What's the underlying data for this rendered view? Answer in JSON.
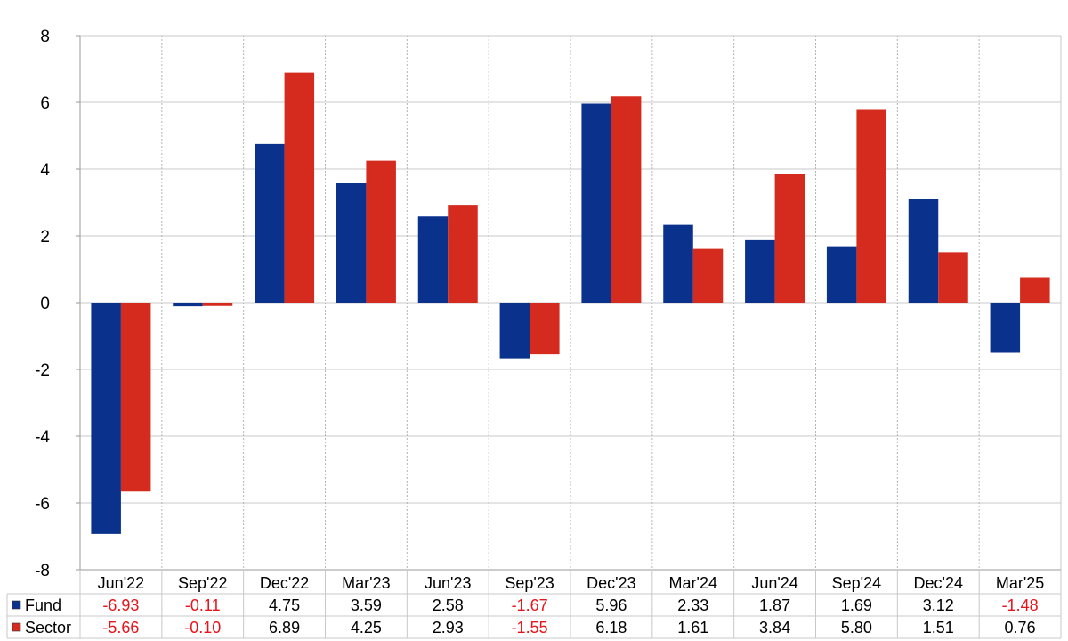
{
  "chart_data": {
    "type": "bar",
    "categories": [
      "Jun'22",
      "Sep'22",
      "Dec'22",
      "Mar'23",
      "Jun'23",
      "Sep'23",
      "Dec'23",
      "Mar'24",
      "Jun'24",
      "Sep'24",
      "Dec'24",
      "Mar'25"
    ],
    "series": [
      {
        "name": "Fund",
        "color": "#0a318c",
        "values": [
          -6.93,
          -0.11,
          4.75,
          3.59,
          2.58,
          -1.67,
          5.96,
          2.33,
          1.87,
          1.69,
          3.12,
          -1.48
        ],
        "labels": [
          "-6.93",
          "-0.11",
          "4.75",
          "3.59",
          "2.58",
          "-1.67",
          "5.96",
          "2.33",
          "1.87",
          "1.69",
          "3.12",
          "-1.48"
        ]
      },
      {
        "name": "Sector",
        "color": "#d52b1e",
        "values": [
          -5.66,
          -0.1,
          6.89,
          4.25,
          2.93,
          -1.55,
          6.18,
          1.61,
          3.84,
          5.8,
          1.51,
          0.76
        ],
        "labels": [
          "-5.66",
          "-0.10",
          "6.89",
          "4.25",
          "2.93",
          "-1.55",
          "6.18",
          "1.61",
          "3.84",
          "5.80",
          "1.51",
          "0.76"
        ]
      }
    ],
    "yticks": [
      "8",
      "6",
      "4",
      "2",
      "0",
      "-2",
      "-4",
      "-6",
      "-8"
    ],
    "ylim": [
      -8,
      8
    ],
    "title": "",
    "xlabel": "",
    "ylabel": "",
    "grid": true,
    "legend": "data table below chart",
    "negative_value_color": "#e8141b"
  }
}
